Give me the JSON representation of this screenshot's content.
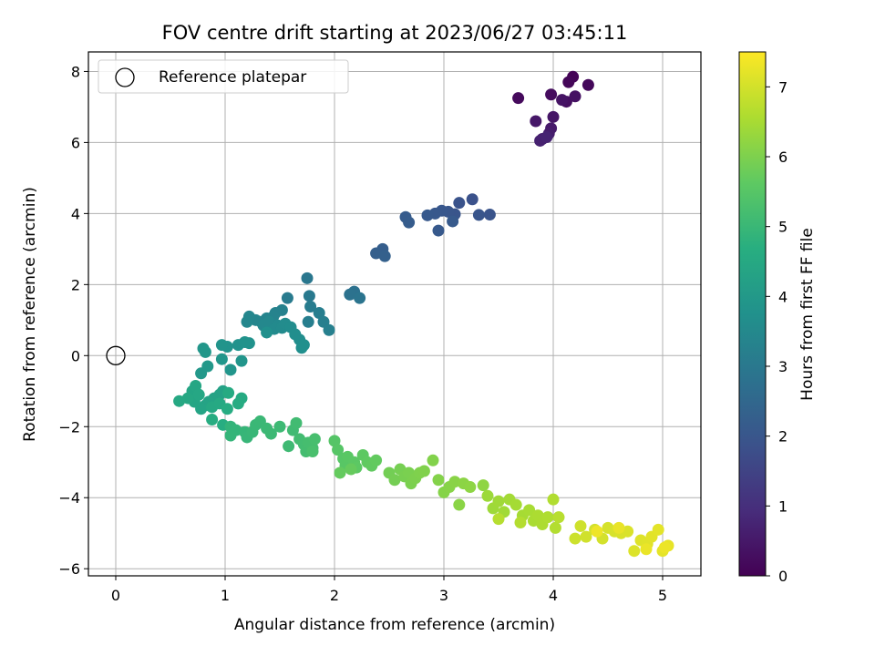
{
  "chart_data": {
    "type": "scatter",
    "title": "FOV centre drift starting at 2023/06/27 03:45:11",
    "xlabel": "Angular distance from reference (arcmin)",
    "ylabel": "Rotation from reference (arcmin)",
    "xlim": [
      -0.25,
      5.35
    ],
    "ylim": [
      -6.2,
      8.55
    ],
    "xticks": [
      0,
      1,
      2,
      3,
      4,
      5
    ],
    "yticks": [
      -6,
      -4,
      -2,
      0,
      2,
      4,
      6,
      8
    ],
    "xtick_labels": [
      "0",
      "1",
      "2",
      "3",
      "4",
      "5"
    ],
    "ytick_labels": [
      "−6",
      "−4",
      "−2",
      "0",
      "2",
      "4",
      "6",
      "8"
    ],
    "grid": true,
    "colormap": "viridis",
    "legend": {
      "position": "top-left",
      "entries": [
        {
          "label": "Reference platepar",
          "marker": "open-circle"
        }
      ]
    },
    "reference_point": {
      "x": 0,
      "y": 0
    },
    "colorbar": {
      "label": "Hours from first FF file",
      "range": [
        0,
        7.5
      ],
      "ticks": [
        0,
        1,
        2,
        3,
        4,
        5,
        6,
        7
      ],
      "tick_labels": [
        "0",
        "1",
        "2",
        "3",
        "4",
        "5",
        "6",
        "7"
      ]
    },
    "points": [
      [
        4.18,
        7.85,
        0.05
      ],
      [
        4.14,
        7.7,
        0.1
      ],
      [
        4.32,
        7.62,
        0.15
      ],
      [
        3.68,
        7.25,
        0.2
      ],
      [
        3.98,
        7.35,
        0.25
      ],
      [
        4.12,
        7.15,
        0.3
      ],
      [
        4.2,
        7.3,
        0.35
      ],
      [
        4.08,
        7.2,
        0.4
      ],
      [
        4.0,
        6.72,
        0.45
      ],
      [
        3.84,
        6.6,
        0.5
      ],
      [
        3.98,
        6.4,
        0.55
      ],
      [
        3.96,
        6.25,
        0.6
      ],
      [
        3.9,
        6.1,
        0.65
      ],
      [
        3.88,
        6.05,
        0.7
      ],
      [
        3.94,
        6.15,
        0.75
      ],
      [
        3.26,
        4.4,
        1.9
      ],
      [
        3.14,
        4.3,
        1.92
      ],
      [
        3.42,
        3.97,
        1.95
      ],
      [
        3.32,
        3.96,
        1.98
      ],
      [
        3.1,
        3.98,
        2.0
      ],
      [
        3.04,
        4.05,
        2.02
      ],
      [
        2.98,
        4.08,
        2.05
      ],
      [
        2.92,
        4.0,
        2.08
      ],
      [
        2.85,
        3.95,
        2.1
      ],
      [
        2.95,
        3.52,
        2.12
      ],
      [
        3.08,
        3.78,
        2.15
      ],
      [
        2.65,
        3.9,
        2.18
      ],
      [
        2.68,
        3.75,
        2.2
      ],
      [
        2.44,
        3.0,
        2.25
      ],
      [
        2.38,
        2.88,
        2.28
      ],
      [
        2.46,
        2.8,
        2.3
      ],
      [
        2.18,
        1.8,
        2.8
      ],
      [
        2.14,
        1.72,
        2.85
      ],
      [
        2.23,
        1.62,
        2.9
      ],
      [
        1.75,
        2.18,
        3.0
      ],
      [
        1.77,
        1.68,
        3.05
      ],
      [
        1.57,
        1.62,
        3.1
      ],
      [
        1.78,
        1.38,
        3.15
      ],
      [
        1.86,
        1.2,
        3.2
      ],
      [
        1.76,
        0.95,
        3.22
      ],
      [
        1.9,
        0.95,
        3.25
      ],
      [
        1.95,
        0.72,
        3.28
      ],
      [
        1.52,
        1.28,
        3.3
      ],
      [
        1.46,
        1.2,
        3.32
      ],
      [
        1.44,
        1.1,
        3.35
      ],
      [
        1.38,
        1.05,
        3.38
      ],
      [
        1.33,
        0.95,
        3.4
      ],
      [
        1.28,
        1.0,
        3.42
      ],
      [
        1.22,
        1.1,
        3.45
      ],
      [
        1.2,
        0.95,
        3.48
      ],
      [
        1.35,
        0.85,
        3.5
      ],
      [
        1.4,
        0.95,
        3.52
      ],
      [
        1.48,
        0.85,
        3.55
      ],
      [
        1.45,
        0.75,
        3.58
      ],
      [
        1.52,
        0.78,
        3.6
      ],
      [
        1.55,
        0.9,
        3.62
      ],
      [
        1.6,
        0.8,
        3.65
      ],
      [
        1.64,
        0.6,
        3.68
      ],
      [
        1.68,
        0.45,
        3.7
      ],
      [
        1.7,
        0.22,
        3.72
      ],
      [
        1.72,
        0.3,
        3.74
      ],
      [
        1.38,
        0.65,
        3.76
      ],
      [
        1.22,
        0.35,
        3.8
      ],
      [
        1.12,
        0.3,
        3.82
      ],
      [
        1.18,
        0.38,
        3.84
      ],
      [
        1.02,
        0.25,
        3.86
      ],
      [
        0.97,
        0.3,
        3.88
      ],
      [
        1.15,
        -0.15,
        3.9
      ],
      [
        1.05,
        -0.4,
        3.92
      ],
      [
        0.97,
        -0.1,
        3.94
      ],
      [
        0.8,
        0.2,
        3.96
      ],
      [
        0.82,
        0.1,
        3.98
      ],
      [
        0.78,
        -0.5,
        4.0
      ],
      [
        0.84,
        -0.3,
        4.02
      ],
      [
        0.98,
        -1.0,
        4.3
      ],
      [
        0.95,
        -1.1,
        4.32
      ],
      [
        0.9,
        -1.2,
        4.34
      ],
      [
        0.85,
        -1.3,
        4.36
      ],
      [
        0.82,
        -1.4,
        4.38
      ],
      [
        0.78,
        -1.5,
        4.4
      ],
      [
        0.72,
        -1.3,
        4.42
      ],
      [
        0.7,
        -1.0,
        4.44
      ],
      [
        0.73,
        -0.85,
        4.46
      ],
      [
        0.76,
        -1.1,
        4.48
      ],
      [
        0.66,
        -1.2,
        4.5
      ],
      [
        0.58,
        -1.28,
        4.52
      ],
      [
        0.88,
        -1.45,
        4.54
      ],
      [
        0.95,
        -1.35,
        4.56
      ],
      [
        1.03,
        -1.05,
        4.58
      ],
      [
        1.15,
        -1.2,
        4.6
      ],
      [
        1.12,
        -1.35,
        4.62
      ],
      [
        1.02,
        -1.5,
        4.64
      ],
      [
        0.88,
        -1.8,
        4.66
      ],
      [
        0.98,
        -1.95,
        4.68
      ],
      [
        1.05,
        -2.0,
        4.9
      ],
      [
        1.1,
        -2.1,
        4.92
      ],
      [
        1.05,
        -2.25,
        4.94
      ],
      [
        1.18,
        -2.15,
        4.96
      ],
      [
        1.2,
        -2.3,
        4.98
      ],
      [
        1.25,
        -2.15,
        5.0
      ],
      [
        1.28,
        -1.95,
        5.02
      ],
      [
        1.32,
        -1.85,
        5.04
      ],
      [
        1.38,
        -2.05,
        5.06
      ],
      [
        1.42,
        -2.2,
        5.08
      ],
      [
        1.5,
        -2.0,
        5.1
      ],
      [
        1.58,
        -2.55,
        5.12
      ],
      [
        1.62,
        -2.1,
        5.14
      ],
      [
        1.65,
        -1.9,
        5.16
      ],
      [
        1.68,
        -2.35,
        5.18
      ],
      [
        1.72,
        -2.5,
        5.2
      ],
      [
        1.74,
        -2.7,
        5.22
      ],
      [
        1.76,
        -2.45,
        5.24
      ],
      [
        1.8,
        -2.6,
        5.26
      ],
      [
        1.82,
        -2.35,
        5.28
      ],
      [
        1.8,
        -2.7,
        5.3
      ],
      [
        2.0,
        -2.4,
        5.5
      ],
      [
        2.03,
        -2.65,
        5.52
      ],
      [
        2.08,
        -2.9,
        5.54
      ],
      [
        2.1,
        -3.1,
        5.56
      ],
      [
        2.12,
        -2.85,
        5.58
      ],
      [
        2.18,
        -3.0,
        5.6
      ],
      [
        2.2,
        -3.15,
        5.62
      ],
      [
        2.26,
        -2.8,
        5.64
      ],
      [
        2.3,
        -3.0,
        5.66
      ],
      [
        2.34,
        -3.1,
        5.68
      ],
      [
        2.38,
        -2.95,
        5.7
      ],
      [
        2.05,
        -3.3,
        5.72
      ],
      [
        2.15,
        -3.2,
        5.74
      ],
      [
        2.5,
        -3.3,
        5.9
      ],
      [
        2.55,
        -3.5,
        5.92
      ],
      [
        2.6,
        -3.2,
        5.94
      ],
      [
        2.64,
        -3.4,
        5.96
      ],
      [
        2.68,
        -3.3,
        5.98
      ],
      [
        2.7,
        -3.6,
        6.0
      ],
      [
        2.74,
        -3.45,
        6.02
      ],
      [
        2.78,
        -3.3,
        6.04
      ],
      [
        2.82,
        -3.25,
        6.06
      ],
      [
        2.9,
        -2.95,
        6.08
      ],
      [
        2.95,
        -3.5,
        6.1
      ],
      [
        3.0,
        -3.85,
        6.12
      ],
      [
        3.05,
        -3.7,
        6.14
      ],
      [
        3.1,
        -3.55,
        6.16
      ],
      [
        3.14,
        -4.2,
        6.18
      ],
      [
        3.18,
        -3.6,
        6.2
      ],
      [
        3.24,
        -3.7,
        6.22
      ],
      [
        3.36,
        -3.65,
        6.24
      ],
      [
        3.4,
        -3.95,
        6.4
      ],
      [
        3.45,
        -4.3,
        6.42
      ],
      [
        3.5,
        -4.1,
        6.44
      ],
      [
        3.55,
        -4.4,
        6.46
      ],
      [
        3.6,
        -4.05,
        6.48
      ],
      [
        3.66,
        -4.2,
        6.5
      ],
      [
        3.72,
        -4.5,
        6.52
      ],
      [
        3.78,
        -4.35,
        6.54
      ],
      [
        3.82,
        -4.65,
        6.56
      ],
      [
        3.86,
        -4.5,
        6.58
      ],
      [
        3.9,
        -4.75,
        6.6
      ],
      [
        3.95,
        -4.55,
        6.62
      ],
      [
        4.0,
        -4.05,
        6.64
      ],
      [
        4.02,
        -4.85,
        6.66
      ],
      [
        3.7,
        -4.7,
        6.68
      ],
      [
        3.5,
        -4.6,
        6.7
      ],
      [
        4.05,
        -4.55,
        6.72
      ],
      [
        4.2,
        -5.15,
        6.95
      ],
      [
        4.25,
        -4.8,
        6.97
      ],
      [
        4.3,
        -5.1,
        6.99
      ],
      [
        4.38,
        -4.9,
        7.01
      ],
      [
        4.45,
        -5.15,
        7.03
      ],
      [
        4.5,
        -4.85,
        7.05
      ],
      [
        4.56,
        -4.95,
        7.07
      ],
      [
        4.62,
        -5.0,
        7.09
      ],
      [
        4.68,
        -4.95,
        7.11
      ],
      [
        4.74,
        -5.5,
        7.13
      ],
      [
        4.8,
        -5.2,
        7.15
      ],
      [
        4.86,
        -5.3,
        7.17
      ],
      [
        4.9,
        -5.1,
        7.19
      ],
      [
        4.96,
        -4.9,
        7.21
      ],
      [
        5.0,
        -5.5,
        7.23
      ],
      [
        5.05,
        -5.35,
        7.25
      ],
      [
        4.6,
        -4.85,
        7.27
      ],
      [
        4.85,
        -5.45,
        7.29
      ],
      [
        5.02,
        -5.4,
        7.31
      ],
      [
        4.4,
        -4.95,
        7.33
      ]
    ]
  }
}
